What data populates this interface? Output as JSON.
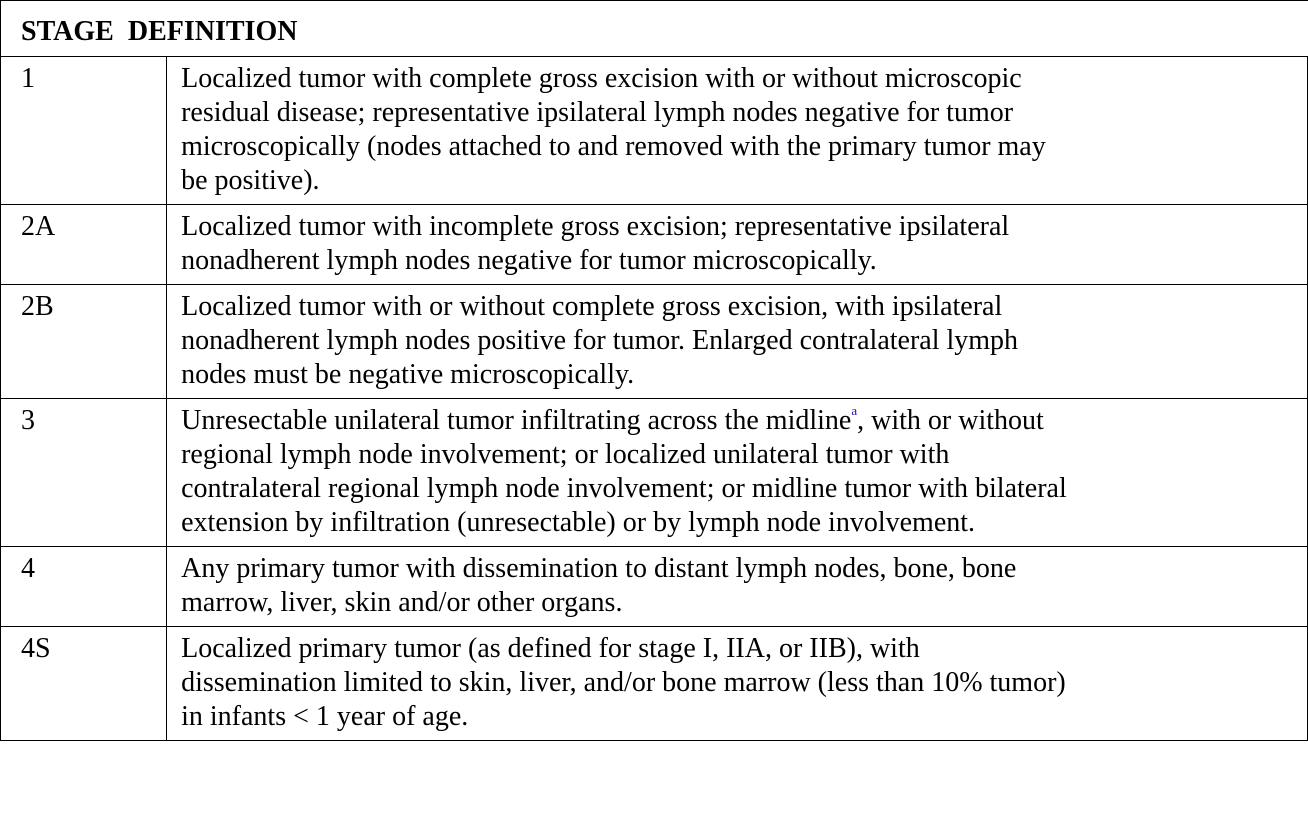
{
  "table": {
    "headers": [
      "STAGE",
      "DEFINITION"
    ],
    "rows": [
      {
        "stage": "1",
        "lines": [
          "Localized tumor with complete gross excision with or without microscopic",
          "residual disease; representative ipsilateral lymph nodes negative for tumor",
          "microscopically (nodes attached to and removed with the primary tumor may",
          "be positive)."
        ]
      },
      {
        "stage": "2A",
        "lines": [
          "Localized tumor with incomplete gross excision; representative ipsilateral",
          "nonadherent lymph nodes negative for tumor microscopically."
        ]
      },
      {
        "stage": "2B",
        "lines": [
          "Localized tumor with or without complete gross excision, with ipsilateral",
          "nonadherent lymph nodes positive for tumor. Enlarged contralateral lymph",
          "nodes must be negative microscopically."
        ]
      },
      {
        "stage": "3",
        "first_line_before_mark": "Unresectable unilateral tumor infiltrating across the midline",
        "footnote_mark": "a",
        "first_line_after_mark": ", with or without",
        "lines": [
          "regional lymph node involvement; or localized unilateral tumor with",
          "contralateral regional lymph node involvement; or midline tumor with bilateral",
          "extension by infiltration (unresectable) or by lymph node involvement."
        ]
      },
      {
        "stage": "4",
        "lines": [
          "Any primary tumor with dissemination to distant lymph nodes, bone, bone",
          "marrow, liver, skin and/or other organs."
        ]
      },
      {
        "stage": "4S",
        "lines": [
          "Localized primary tumor (as defined for stage I, IIA, or IIB), with",
          "dissemination limited to skin, liver, and/or bone marrow (less than 10% tumor)",
          "in infants < 1 year of age."
        ]
      }
    ]
  },
  "colors": {
    "text": "#000000",
    "border": "#000000",
    "footnote_link": "#1a0dab"
  }
}
